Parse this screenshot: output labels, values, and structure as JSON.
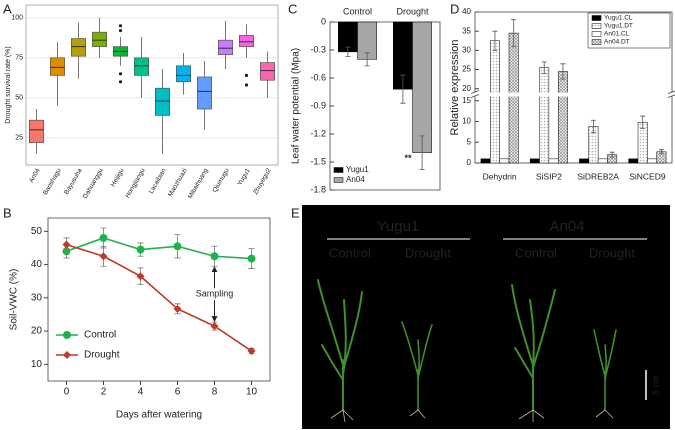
{
  "chart_data": [
    {
      "panel": "A",
      "type": "box",
      "ylabel": "Drought survival rate (%)",
      "categories": [
        "An04",
        "Baoshagu",
        "Bayusuha",
        "Dahuanggu",
        "Heijigu",
        "Hongjiangu",
        "Lacaibian",
        "Maozhuazi",
        "Mibaihuang",
        "Qiumugu",
        "Yugu1",
        "Zhuyegu2"
      ],
      "boxes": [
        {
          "min": 15,
          "q1": 22,
          "median": 30,
          "q3": 36,
          "max": 43,
          "outliers": []
        },
        {
          "min": 45,
          "q1": 64,
          "median": 69,
          "q3": 75,
          "max": 85,
          "outliers": []
        },
        {
          "min": 62,
          "q1": 76,
          "median": 82,
          "q3": 87,
          "max": 97,
          "outliers": []
        },
        {
          "min": 75,
          "q1": 82,
          "median": 86,
          "q3": 91,
          "max": 100,
          "outliers": []
        },
        {
          "min": 70,
          "q1": 76,
          "median": 79,
          "q3": 82,
          "max": 88,
          "outliers": [
            95,
            92,
            65,
            60
          ]
        },
        {
          "min": 50,
          "q1": 64,
          "median": 70,
          "q3": 75,
          "max": 88,
          "outliers": []
        },
        {
          "min": 15,
          "q1": 39,
          "median": 48,
          "q3": 56,
          "max": 68,
          "outliers": []
        },
        {
          "min": 52,
          "q1": 60,
          "median": 64,
          "q3": 70,
          "max": 78,
          "outliers": []
        },
        {
          "min": 30,
          "q1": 43,
          "median": 54,
          "q3": 63,
          "max": 73,
          "outliers": []
        },
        {
          "min": 68,
          "q1": 77,
          "median": 81,
          "q3": 86,
          "max": 98,
          "outliers": []
        },
        {
          "min": 75,
          "q1": 82,
          "median": 85,
          "q3": 89,
          "max": 96,
          "outliers": [
            64,
            58
          ]
        },
        {
          "min": 50,
          "q1": 61,
          "median": 67,
          "q3": 72,
          "max": 79,
          "outliers": []
        }
      ],
      "colors": [
        "#F8766D",
        "#DE8C00",
        "#B79F00",
        "#7CAE00",
        "#00BA38",
        "#00C08B",
        "#00BFC4",
        "#00B4F0",
        "#619CFF",
        "#C77CFF",
        "#F564E3",
        "#FF64B0"
      ],
      "label_colors": [
        "#e0201b",
        "#333333",
        "#333333",
        "#333333",
        "#333333",
        "#333333",
        "#333333",
        "#333333",
        "#333333",
        "#333333",
        "#e0201b",
        "#333333"
      ],
      "ylim": [
        8,
        108
      ],
      "yticks": [
        25,
        50,
        75,
        100
      ],
      "grid": true
    },
    {
      "panel": "B",
      "type": "line",
      "xlabel": "Days after watering",
      "ylabel": "Soil-VWC (%)",
      "x": [
        0,
        2,
        4,
        6,
        8,
        10
      ],
      "series": [
        {
          "name": "Control",
          "color": "#1fb24a",
          "marker": "circle",
          "values": [
            44,
            48,
            44.5,
            45.5,
            42.5,
            41.8
          ],
          "errors": [
            2,
            3,
            2,
            3.5,
            3,
            3
          ]
        },
        {
          "name": "Drought",
          "color": "#c0392b",
          "marker": "diamond",
          "values": [
            46,
            42.5,
            36.5,
            26.7,
            21.5,
            14
          ],
          "errors": [
            2,
            3,
            2.5,
            1.5,
            1.2,
            0.8
          ]
        }
      ],
      "annotation": {
        "text": "Sampling",
        "x": 8
      },
      "xlim": [
        -1,
        11
      ],
      "ylim": [
        5,
        54
      ],
      "xticks": [
        0,
        2,
        4,
        6,
        8,
        10
      ],
      "yticks": [
        10,
        20,
        30,
        40,
        50
      ],
      "legend": "lower left"
    },
    {
      "panel": "C",
      "type": "bar",
      "ylabel": "Leaf water potential (Mpa)",
      "categories": [
        "Control",
        "Drought"
      ],
      "series": [
        {
          "name": "Yugu1",
          "color": "#000000",
          "values": [
            -0.32,
            -0.72
          ],
          "errors": [
            0.05,
            0.15
          ]
        },
        {
          "name": "An04",
          "color": "#a6a6a6",
          "values": [
            -0.4,
            -1.4
          ],
          "errors": [
            0.07,
            0.18
          ]
        }
      ],
      "annotation": {
        "text": "**",
        "category": 1,
        "series": 1
      },
      "ylim": [
        -1.8,
        0
      ],
      "yticks": [
        0,
        -0.3,
        -0.6,
        -0.9,
        -1.2,
        -1.5,
        -1.8
      ],
      "legend": "lower left"
    },
    {
      "panel": "D",
      "type": "bar",
      "ylabel": "Relative expression",
      "categories": [
        "Dehydrin",
        "SiSIP2",
        "SiDREB2A",
        "SiNCED9"
      ],
      "series": [
        {
          "name": "Yugu1.CL",
          "color": "#000000",
          "values": [
            1,
            1,
            1,
            1
          ],
          "errors": [
            0,
            0,
            0,
            0
          ]
        },
        {
          "name": "Yugu1.DT",
          "color": "#b0b0b0",
          "pattern": "dots",
          "values": [
            32.5,
            25.5,
            8.8,
            9.8
          ],
          "errors": [
            2.5,
            1.5,
            1.5,
            1.5
          ]
        },
        {
          "name": "An01.CL",
          "color": "#ffffff",
          "values": [
            1,
            1,
            1,
            1
          ],
          "errors": [
            0,
            0,
            0,
            0
          ]
        },
        {
          "name": "An04.DT",
          "color": "#909090",
          "pattern": "cross",
          "values": [
            34.5,
            24.5,
            2,
            2.7
          ],
          "errors": [
            3.5,
            2,
            0.6,
            0.5
          ]
        }
      ],
      "ylim": [
        0,
        40
      ],
      "ybreak": [
        16,
        19
      ],
      "yticks": [
        0,
        5,
        10,
        15,
        20,
        25,
        30,
        35,
        40
      ],
      "legend": "upper right"
    }
  ],
  "photo": {
    "panel": "E",
    "groups": [
      {
        "name": "Yugu1",
        "conditions": [
          "Control",
          "Drought"
        ]
      },
      {
        "name": "An04",
        "conditions": [
          "Control",
          "Drought"
        ]
      }
    ],
    "scale_bar": "5 cm"
  }
}
